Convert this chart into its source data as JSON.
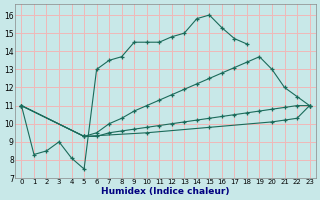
{
  "xlabel": "Humidex (Indice chaleur)",
  "bg_color": "#c8e8e8",
  "grid_color": "#f0b8b8",
  "line_color": "#1a6b5a",
  "xlim": [
    -0.5,
    23.5
  ],
  "ylim": [
    7,
    16.6
  ],
  "xticks": [
    0,
    1,
    2,
    3,
    4,
    5,
    6,
    7,
    8,
    9,
    10,
    11,
    12,
    13,
    14,
    15,
    16,
    17,
    18,
    19,
    20,
    21,
    22,
    23
  ],
  "yticks": [
    7,
    8,
    9,
    10,
    11,
    12,
    13,
    14,
    15,
    16
  ],
  "lines": [
    {
      "x": [
        0,
        1,
        2,
        3,
        4,
        5,
        6,
        7,
        8,
        9,
        10,
        11,
        12,
        13,
        14,
        15,
        16,
        17,
        18
      ],
      "y": [
        11,
        8.3,
        8.5,
        9.0,
        8.1,
        7.5,
        13.0,
        13.5,
        13.7,
        14.5,
        14.5,
        14.5,
        14.8,
        15.0,
        15.8,
        16.0,
        15.3,
        14.7,
        14.4
      ]
    },
    {
      "x": [
        0,
        5,
        6,
        7,
        8,
        9,
        10,
        11,
        12,
        13,
        14,
        15,
        16,
        17,
        18,
        19,
        20,
        21,
        22,
        23
      ],
      "y": [
        11,
        9.3,
        9.5,
        10.0,
        10.3,
        10.7,
        11.0,
        11.3,
        11.6,
        11.9,
        12.2,
        12.5,
        12.8,
        13.1,
        13.4,
        13.7,
        13.0,
        12.0,
        11.5,
        11.0
      ]
    },
    {
      "x": [
        0,
        5,
        6,
        7,
        8,
        9,
        10,
        11,
        12,
        13,
        14,
        15,
        16,
        17,
        18,
        19,
        20,
        21,
        22,
        23
      ],
      "y": [
        11,
        9.3,
        9.3,
        9.5,
        9.6,
        9.7,
        9.8,
        9.9,
        10.0,
        10.1,
        10.2,
        10.3,
        10.4,
        10.5,
        10.6,
        10.7,
        10.8,
        10.9,
        11.0,
        11.0
      ]
    },
    {
      "x": [
        0,
        5,
        10,
        15,
        20,
        21,
        22,
        23
      ],
      "y": [
        11,
        9.3,
        9.5,
        9.8,
        10.1,
        10.2,
        10.3,
        11.0
      ]
    }
  ]
}
